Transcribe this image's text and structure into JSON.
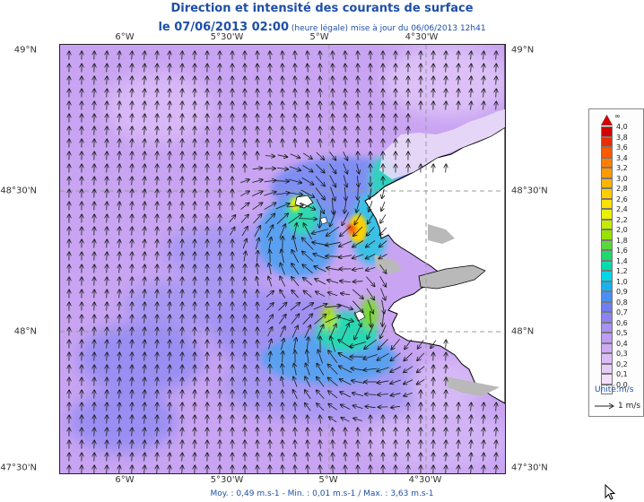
{
  "title": {
    "line1": "Direction et intensité des courants de surface",
    "line2_bold": "le 07/06/2013 02:00",
    "line2_small": " (heure légale) mise à jour du 06/06/2013 12h41"
  },
  "axes": {
    "longitude_labels": [
      "6°W",
      "5°30'W",
      "5°W",
      "4°30'W"
    ],
    "latitude_labels": [
      "49°N",
      "48°30'N",
      "48°N",
      "47°30'N"
    ]
  },
  "legend": {
    "labels": [
      "4,0",
      "3,8",
      "3,6",
      "3,4",
      "3,2",
      "3,0",
      "2,8",
      "2,6",
      "2,4",
      "2,2",
      "2,0",
      "1,8",
      "1,6",
      "1,4",
      "1,2",
      "1,0",
      "0,9",
      "0,8",
      "0,7",
      "0,6",
      "0,5",
      "0,4",
      "0,3",
      "0,2",
      "0,1",
      "0,0"
    ],
    "colors": [
      "#d40000",
      "#ec2b00",
      "#ff5a00",
      "#ff7d00",
      "#ff9b00",
      "#ffb400",
      "#ffcc00",
      "#ffe000",
      "#e9f000",
      "#c4ec00",
      "#96e300",
      "#58d83a",
      "#1ed96d",
      "#00dcaf",
      "#00d6e6",
      "#1ab0f0",
      "#4a8ff2",
      "#6f7ff0",
      "#8c84f2",
      "#a892f2",
      "#bf9cf5",
      "#cfaaf4",
      "#dcbcf7",
      "#e7ccf8",
      "#f2e0fb",
      "#ffffff"
    ],
    "top_marker": "∞",
    "unit": "Unité:m/s",
    "scale_label": "1 m/s"
  },
  "footer": "Moy. : 0,49 m.s-1  -  Min. : 0,01 m.s-1 / Max. : 3,63 m.s-1",
  "map": {
    "land_color": "#ffffff",
    "coast_color": "#000000",
    "grid_color": "#999999",
    "arrow_color": "#1a1a1a"
  }
}
